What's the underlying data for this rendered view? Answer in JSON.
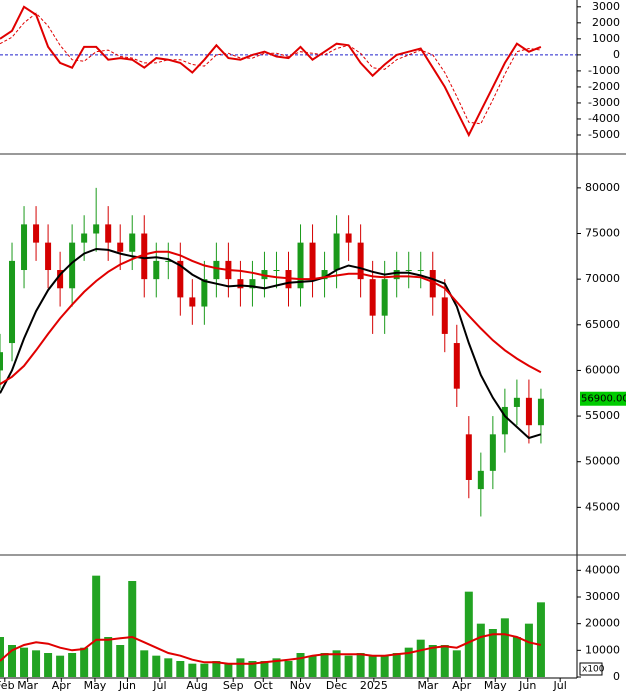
{
  "chart_data": [
    {
      "type": "line",
      "x": [
        0,
        1,
        2,
        3,
        4,
        5,
        6,
        7,
        8,
        9,
        10,
        11,
        12,
        13,
        14,
        15,
        16,
        17,
        18,
        19,
        20,
        21,
        22,
        23,
        24,
        25,
        26,
        27,
        28,
        29,
        30,
        31,
        32,
        33,
        34,
        35,
        36,
        37,
        38,
        39,
        40,
        41,
        42,
        43,
        44,
        45
      ],
      "xlim": [
        0,
        48
      ],
      "ylim": [
        -6000,
        3300
      ],
      "yticks": [
        -5000,
        -4000,
        -3000,
        -2000,
        -1000,
        0,
        1000,
        2000,
        3000
      ],
      "reference_line": {
        "value": 0,
        "color": "#2222cc"
      },
      "series": [
        {
          "color": "#e00000",
          "dash": false,
          "width": 2,
          "values": [
            1000,
            1500,
            3000,
            2500,
            500,
            -500,
            -800,
            500,
            500,
            -300,
            -200,
            -300,
            -800,
            -200,
            -300,
            -500,
            -1100,
            -300,
            600,
            -200,
            -300,
            0,
            200,
            -100,
            -200,
            500,
            -300,
            200,
            700,
            600,
            -500,
            -1300,
            -600,
            0,
            200,
            400,
            -800,
            -2000,
            -3500,
            -5000,
            -3500,
            -2000,
            -500,
            700,
            200,
            500
          ]
        },
        {
          "color": "#e00000",
          "dash": true,
          "width": 1,
          "values": [
            700,
            1100,
            2000,
            2600,
            1800,
            600,
            -300,
            -400,
            200,
            300,
            -100,
            -200,
            -500,
            -500,
            -300,
            -300,
            -600,
            -700,
            0,
            100,
            -200,
            -200,
            100,
            100,
            -100,
            200,
            100,
            0,
            400,
            600,
            100,
            -800,
            -900,
            -300,
            0,
            300,
            0,
            -1100,
            -2600,
            -4200,
            -4300,
            -2800,
            -1200,
            200,
            400,
            300
          ]
        }
      ]
    },
    {
      "type": "candlestick",
      "x": [
        0,
        1,
        2,
        3,
        4,
        5,
        6,
        7,
        8,
        9,
        10,
        11,
        12,
        13,
        14,
        15,
        16,
        17,
        18,
        19,
        20,
        21,
        22,
        23,
        24,
        25,
        26,
        27,
        28,
        29,
        30,
        31,
        32,
        33,
        34,
        35,
        36,
        37,
        38,
        39,
        40,
        41,
        42,
        43,
        44,
        45
      ],
      "xlim": [
        0,
        48
      ],
      "ylim": [
        40000,
        83600
      ],
      "yticks": [
        45000,
        50000,
        55000,
        60000,
        65000,
        70000,
        75000,
        80000
      ],
      "up_color": "#1a9a1a",
      "down_color": "#d40000",
      "open": [
        60000,
        63000,
        71000,
        76000,
        74000,
        71000,
        69000,
        74000,
        75000,
        76000,
        74000,
        73000,
        75000,
        70000,
        72000,
        72000,
        68000,
        67000,
        70000,
        72000,
        70000,
        69000,
        70000,
        71000,
        71000,
        69000,
        74000,
        70000,
        71000,
        75000,
        74000,
        70000,
        66000,
        70000,
        71000,
        71000,
        71000,
        68000,
        63000,
        53000,
        47000,
        49000,
        53000,
        56000,
        57000,
        54000
      ],
      "high": [
        64000,
        74000,
        78000,
        78000,
        76000,
        73000,
        76000,
        77000,
        80000,
        78000,
        76000,
        77000,
        77000,
        74000,
        74000,
        74000,
        70000,
        72000,
        74000,
        74000,
        72000,
        72000,
        73000,
        73000,
        73000,
        76000,
        76000,
        73000,
        77000,
        77000,
        76000,
        72000,
        72000,
        73000,
        73000,
        73000,
        73000,
        70000,
        65000,
        55000,
        51000,
        55000,
        58000,
        59000,
        59000,
        58000
      ],
      "low": [
        58000,
        61000,
        69000,
        72000,
        69000,
        67000,
        67000,
        72000,
        73000,
        72000,
        71000,
        71000,
        68000,
        68000,
        70000,
        66000,
        65000,
        65000,
        68000,
        68000,
        67000,
        67000,
        68000,
        69000,
        67000,
        67000,
        68000,
        68000,
        69000,
        72000,
        68000,
        64000,
        64000,
        68000,
        69000,
        69000,
        66000,
        62000,
        56000,
        46000,
        44000,
        47000,
        51000,
        54000,
        52000,
        52000
      ],
      "close": [
        62000,
        72000,
        76000,
        74000,
        71000,
        69000,
        74000,
        75000,
        76000,
        74000,
        73000,
        75000,
        70000,
        72000,
        72000,
        68000,
        67000,
        70000,
        72000,
        70000,
        69000,
        70000,
        71000,
        71000,
        69000,
        74000,
        70000,
        71000,
        75000,
        74000,
        70000,
        66000,
        70000,
        71000,
        71000,
        71000,
        68000,
        64000,
        58000,
        48000,
        49000,
        53000,
        56000,
        57000,
        54000,
        56900
      ],
      "series": [
        {
          "color": "#000000",
          "dash": false,
          "width": 2,
          "values": [
            57500,
            60000,
            63500,
            66500,
            68800,
            70500,
            71800,
            72800,
            73300,
            73200,
            72800,
            72500,
            72300,
            72400,
            72200,
            71500,
            70500,
            69800,
            69500,
            69200,
            69300,
            69200,
            69000,
            69300,
            69600,
            69700,
            69800,
            70200,
            71000,
            71500,
            71200,
            70800,
            70500,
            70700,
            70700,
            70400,
            70000,
            69500,
            67000,
            63000,
            59500,
            57000,
            55000,
            53800,
            52600,
            53000
          ]
        },
        {
          "color": "#e00000",
          "dash": false,
          "width": 2,
          "values": [
            58500,
            59300,
            60500,
            62200,
            64000,
            65700,
            67200,
            68600,
            69800,
            70800,
            71600,
            72200,
            72700,
            73000,
            73000,
            72600,
            72000,
            71500,
            71200,
            71000,
            70900,
            70700,
            70400,
            70200,
            70100,
            70000,
            70000,
            70200,
            70400,
            70600,
            70600,
            70300,
            70200,
            70300,
            70300,
            70200,
            69700,
            69000,
            67500,
            66000,
            64600,
            63300,
            62200,
            61300,
            60500,
            59800
          ]
        }
      ],
      "annotations": [
        {
          "value": 56900,
          "label": "56900.00",
          "color": "#00cc00"
        }
      ]
    },
    {
      "type": "bar",
      "x": [
        0,
        1,
        2,
        3,
        4,
        5,
        6,
        7,
        8,
        9,
        10,
        11,
        12,
        13,
        14,
        15,
        16,
        17,
        18,
        19,
        20,
        21,
        22,
        23,
        24,
        25,
        26,
        27,
        28,
        29,
        30,
        31,
        32,
        33,
        34,
        35,
        36,
        37,
        38,
        39,
        40,
        41,
        42,
        43,
        44,
        45
      ],
      "xlim": [
        0,
        48
      ],
      "ylim": [
        0,
        45000
      ],
      "yticks": [
        0,
        10000,
        20000,
        30000,
        40000
      ],
      "color": "#22a322",
      "values": [
        15000,
        12000,
        11000,
        10000,
        9000,
        8000,
        9000,
        11000,
        38000,
        15000,
        12000,
        36000,
        10000,
        8000,
        7000,
        6000,
        5000,
        5000,
        6000,
        5000,
        7000,
        6000,
        6000,
        7000,
        6000,
        9000,
        8000,
        9000,
        10000,
        8000,
        9000,
        8000,
        8000,
        9000,
        11000,
        14000,
        12000,
        12000,
        10000,
        32000,
        20000,
        18000,
        22000,
        15000,
        20000,
        28000
      ],
      "series": [
        {
          "color": "#e00000",
          "dash": false,
          "width": 2,
          "values": [
            6000,
            10000,
            12000,
            13000,
            12500,
            11000,
            10000,
            10500,
            14000,
            14000,
            14500,
            15000,
            13000,
            11000,
            9000,
            8000,
            6500,
            5500,
            5500,
            5000,
            5000,
            5000,
            5500,
            6000,
            6500,
            7000,
            8000,
            8500,
            8500,
            8500,
            8500,
            8000,
            8000,
            8500,
            9000,
            10000,
            11000,
            11500,
            11000,
            13000,
            15000,
            16000,
            16000,
            15000,
            13000,
            12000
          ]
        }
      ],
      "units_label": "x100",
      "xticks": [
        {
          "value": 0.4,
          "label": "Feb"
        },
        {
          "value": 2.3,
          "label": "Mar"
        },
        {
          "value": 5.1,
          "label": "Apr"
        },
        {
          "value": 7.9,
          "label": "May"
        },
        {
          "value": 10.6,
          "label": "Jun"
        },
        {
          "value": 13.3,
          "label": "Jul"
        },
        {
          "value": 16.4,
          "label": "Aug"
        },
        {
          "value": 19.4,
          "label": "Sep"
        },
        {
          "value": 21.9,
          "label": "Oct"
        },
        {
          "value": 25,
          "label": "Nov"
        },
        {
          "value": 28,
          "label": "Dec"
        },
        {
          "value": 31.1,
          "label": "2025"
        },
        {
          "value": 35.6,
          "label": "Mar"
        },
        {
          "value": 38.4,
          "label": "Apr"
        },
        {
          "value": 41.2,
          "label": "May"
        },
        {
          "value": 43.9,
          "label": "Jun"
        },
        {
          "value": 46.6,
          "label": "Jul"
        }
      ]
    }
  ]
}
